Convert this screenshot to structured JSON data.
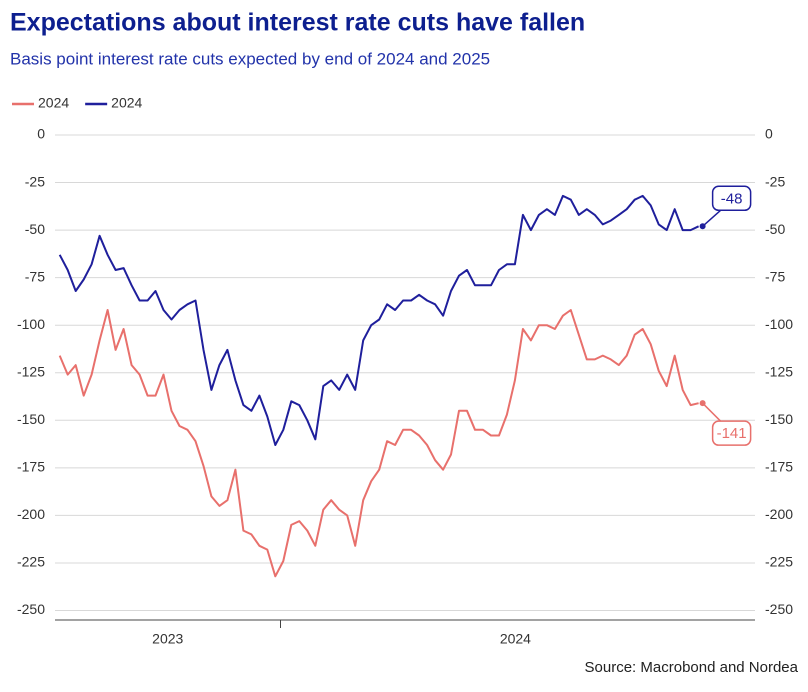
{
  "chart_data": {
    "type": "line",
    "title": "Expectations about interest rate cuts have fallen",
    "subtitle": "Basis point interest rate cuts expected by end of 2024 and 2025",
    "source": "Source: Macrobond and Nordea",
    "legend": "top-left",
    "grid": true,
    "ylim": [
      -255,
      0
    ],
    "yticks": [
      0,
      -25,
      -50,
      -75,
      -100,
      -125,
      -150,
      -175,
      -200,
      -225,
      -250
    ],
    "xlim": [
      2023.52,
      2025.01
    ],
    "xticks": [
      {
        "value": 2023.76,
        "label": "2023"
      },
      {
        "value": 2024.5,
        "label": "2024"
      }
    ],
    "xbreaks": [
      2024
    ],
    "x": [
      2023.53,
      2023.547,
      2023.564,
      2023.581,
      2023.598,
      2023.615,
      2023.632,
      2023.649,
      2023.666,
      2023.683,
      2023.7,
      2023.717,
      2023.734,
      2023.751,
      2023.768,
      2023.785,
      2023.802,
      2023.819,
      2023.836,
      2023.853,
      2023.87,
      2023.887,
      2023.904,
      2023.921,
      2023.938,
      2023.955,
      2023.972,
      2023.989,
      2024.006,
      2024.023,
      2024.04,
      2024.057,
      2024.074,
      2024.091,
      2024.108,
      2024.125,
      2024.142,
      2024.159,
      2024.176,
      2024.193,
      2024.21,
      2024.227,
      2024.244,
      2024.261,
      2024.278,
      2024.295,
      2024.312,
      2024.329,
      2024.346,
      2024.363,
      2024.38,
      2024.397,
      2024.414,
      2024.431,
      2024.448,
      2024.465,
      2024.482,
      2024.499,
      2024.516,
      2024.533,
      2024.55,
      2024.567,
      2024.584,
      2024.601,
      2024.618,
      2024.635,
      2024.652,
      2024.669,
      2024.686,
      2024.703,
      2024.72,
      2024.737,
      2024.754,
      2024.771,
      2024.788,
      2024.805,
      2024.822,
      2024.839,
      2024.856,
      2024.873,
      2024.89
    ],
    "series": [
      {
        "name": "2024",
        "color": "#e8706c",
        "values": [
          -116,
          -126,
          -121,
          -137,
          -126,
          -108,
          -92,
          -113,
          -102,
          -121,
          -126,
          -137,
          -137,
          -126,
          -145,
          -153,
          -155,
          -161,
          -174,
          -190,
          -195,
          -192,
          -176,
          -208,
          -210,
          -216,
          -218,
          -232,
          -224,
          -205,
          -203,
          -208,
          -216,
          -197,
          -192,
          -197,
          -200,
          -216,
          -192,
          -182,
          -176,
          -161,
          -163,
          -155,
          -155,
          -158,
          -163,
          -171,
          -176,
          -168,
          -145,
          -145,
          -155,
          -155,
          -158,
          -158,
          -147,
          -129,
          -102,
          -108,
          -100,
          -100,
          -102,
          -95,
          -92,
          -105,
          -118,
          -118,
          -116,
          -118,
          -121,
          -116,
          -105,
          -102,
          -110,
          -124,
          -132,
          -116,
          -134,
          -142,
          -141
        ]
      },
      {
        "name": "2024",
        "color": "#1f1f9c",
        "values": [
          -63,
          -71,
          -82,
          -76,
          -68,
          -53,
          -63,
          -71,
          -70,
          -79,
          -87,
          -87,
          -82,
          -92,
          -97,
          -92,
          -89,
          -87,
          -113,
          -134,
          -121,
          -113,
          -129,
          -142,
          -145,
          -137,
          -148,
          -163,
          -155,
          -140,
          -142,
          -150,
          -160,
          -132,
          -129,
          -134,
          -126,
          -134,
          -108,
          -100,
          -97,
          -89,
          -92,
          -87,
          -87,
          -84,
          -87,
          -89,
          -95,
          -82,
          -74,
          -71,
          -79,
          -79,
          -79,
          -71,
          -68,
          -68,
          -42,
          -50,
          -42,
          -39,
          -42,
          -32,
          -34,
          -42,
          -39,
          -42,
          -47,
          -45,
          -42,
          -39,
          -34,
          -32,
          -37,
          -47,
          -50,
          -39,
          -50,
          -50,
          -48
        ]
      }
    ],
    "annotations": [
      "-141",
      "-48"
    ]
  }
}
